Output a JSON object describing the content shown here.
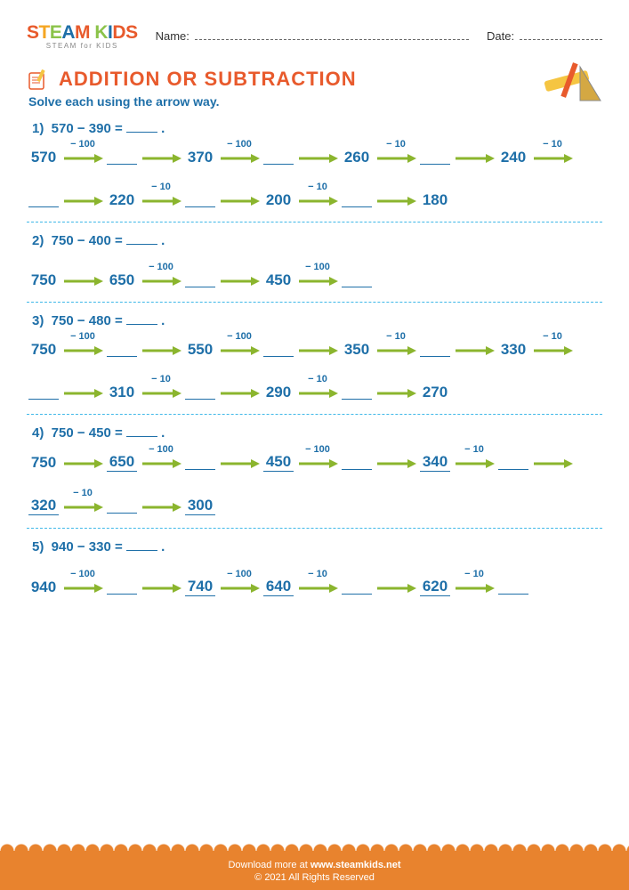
{
  "logo": {
    "text_steam": "STEAM",
    "text_kids": " KIDS",
    "colors": [
      "#e85a2c",
      "#f5a623",
      "#8bc34a",
      "#1e6fa8",
      "#e85a2c",
      "#f5a623",
      "#8bc34a",
      "#1e6fa8",
      "#e85a2c"
    ],
    "sub": "STEAM for KIDS"
  },
  "header": {
    "name_label": "Name:",
    "date_label": "Date:"
  },
  "title": "ADDITION OR SUBTRACTION",
  "instruction": "Solve each using the arrow way.",
  "arrow_color": "#8bb52e",
  "text_color": "#1e6fa8",
  "accent_color": "#e85a2c",
  "sep_color": "#3fb8e8",
  "footer_bg": "#e8832e",
  "problems": [
    {
      "num": "1)",
      "expr": "570 − 390 =",
      "chain": [
        {
          "t": "val",
          "v": "570"
        },
        {
          "t": "arr",
          "op": "− 100"
        },
        {
          "t": "blank"
        },
        {
          "t": "arr"
        },
        {
          "t": "val",
          "v": "370"
        },
        {
          "t": "arr",
          "op": "− 100"
        },
        {
          "t": "blank"
        },
        {
          "t": "arr"
        },
        {
          "t": "val",
          "v": "260"
        },
        {
          "t": "arr",
          "op": "− 10"
        },
        {
          "t": "blank"
        },
        {
          "t": "arr"
        },
        {
          "t": "val",
          "v": "240"
        },
        {
          "t": "arr",
          "op": "− 10"
        },
        {
          "t": "blank"
        },
        {
          "t": "arr"
        },
        {
          "t": "val",
          "v": "220"
        },
        {
          "t": "arr",
          "op": "− 10"
        },
        {
          "t": "blank"
        },
        {
          "t": "arr"
        },
        {
          "t": "val",
          "v": "200"
        },
        {
          "t": "arr",
          "op": "− 10"
        },
        {
          "t": "blank"
        },
        {
          "t": "arr"
        },
        {
          "t": "val",
          "v": "180"
        }
      ]
    },
    {
      "num": "2)",
      "expr": "750 − 400 =",
      "chain": [
        {
          "t": "val",
          "v": "750"
        },
        {
          "t": "arr"
        },
        {
          "t": "val",
          "v": "650"
        },
        {
          "t": "arr",
          "op": "− 100"
        },
        {
          "t": "blank"
        },
        {
          "t": "arr"
        },
        {
          "t": "val",
          "v": "450"
        },
        {
          "t": "arr",
          "op": "− 100"
        },
        {
          "t": "blank"
        }
      ]
    },
    {
      "num": "3)",
      "expr": "750 − 480 =",
      "chain": [
        {
          "t": "val",
          "v": "750"
        },
        {
          "t": "arr",
          "op": "− 100"
        },
        {
          "t": "blank"
        },
        {
          "t": "arr"
        },
        {
          "t": "val",
          "v": "550"
        },
        {
          "t": "arr",
          "op": "− 100"
        },
        {
          "t": "blank"
        },
        {
          "t": "arr"
        },
        {
          "t": "val",
          "v": "350"
        },
        {
          "t": "arr",
          "op": "− 10"
        },
        {
          "t": "blank"
        },
        {
          "t": "arr"
        },
        {
          "t": "val",
          "v": "330"
        },
        {
          "t": "arr",
          "op": "− 10"
        },
        {
          "t": "blank"
        },
        {
          "t": "arr"
        },
        {
          "t": "val",
          "v": "310"
        },
        {
          "t": "arr",
          "op": "− 10"
        },
        {
          "t": "blank"
        },
        {
          "t": "arr"
        },
        {
          "t": "val",
          "v": "290"
        },
        {
          "t": "arr",
          "op": "− 10"
        },
        {
          "t": "blank"
        },
        {
          "t": "arr"
        },
        {
          "t": "val",
          "v": "270"
        }
      ]
    },
    {
      "num": "4)",
      "expr": "750 − 450 =",
      "chain": [
        {
          "t": "val",
          "v": "750"
        },
        {
          "t": "arr"
        },
        {
          "t": "fill",
          "v": "650"
        },
        {
          "t": "arr",
          "op": "− 100"
        },
        {
          "t": "blank"
        },
        {
          "t": "arr"
        },
        {
          "t": "fill",
          "v": "450"
        },
        {
          "t": "arr",
          "op": "− 100"
        },
        {
          "t": "blank"
        },
        {
          "t": "arr"
        },
        {
          "t": "fill",
          "v": "340"
        },
        {
          "t": "arr",
          "op": "− 10"
        },
        {
          "t": "blank"
        },
        {
          "t": "arr"
        },
        {
          "t": "fill",
          "v": "320"
        },
        {
          "t": "arr",
          "op": "− 10"
        },
        {
          "t": "blank"
        },
        {
          "t": "arr"
        },
        {
          "t": "fill",
          "v": "300"
        }
      ]
    },
    {
      "num": "5)",
      "expr": "940 − 330 =",
      "chain": [
        {
          "t": "val",
          "v": "940"
        },
        {
          "t": "arr",
          "op": "− 100"
        },
        {
          "t": "blank"
        },
        {
          "t": "arr"
        },
        {
          "t": "fill",
          "v": "740"
        },
        {
          "t": "arr",
          "op": "− 100"
        },
        {
          "t": "fill",
          "v": "640"
        },
        {
          "t": "arr",
          "op": "− 10"
        },
        {
          "t": "blank"
        },
        {
          "t": "arr"
        },
        {
          "t": "fill",
          "v": "620"
        },
        {
          "t": "arr",
          "op": "− 10"
        },
        {
          "t": "blank"
        }
      ]
    }
  ],
  "footer": {
    "line1_a": "Download more at ",
    "line1_b": "www.steamkids.net",
    "line2": "© 2021 All Rights Reserved"
  }
}
